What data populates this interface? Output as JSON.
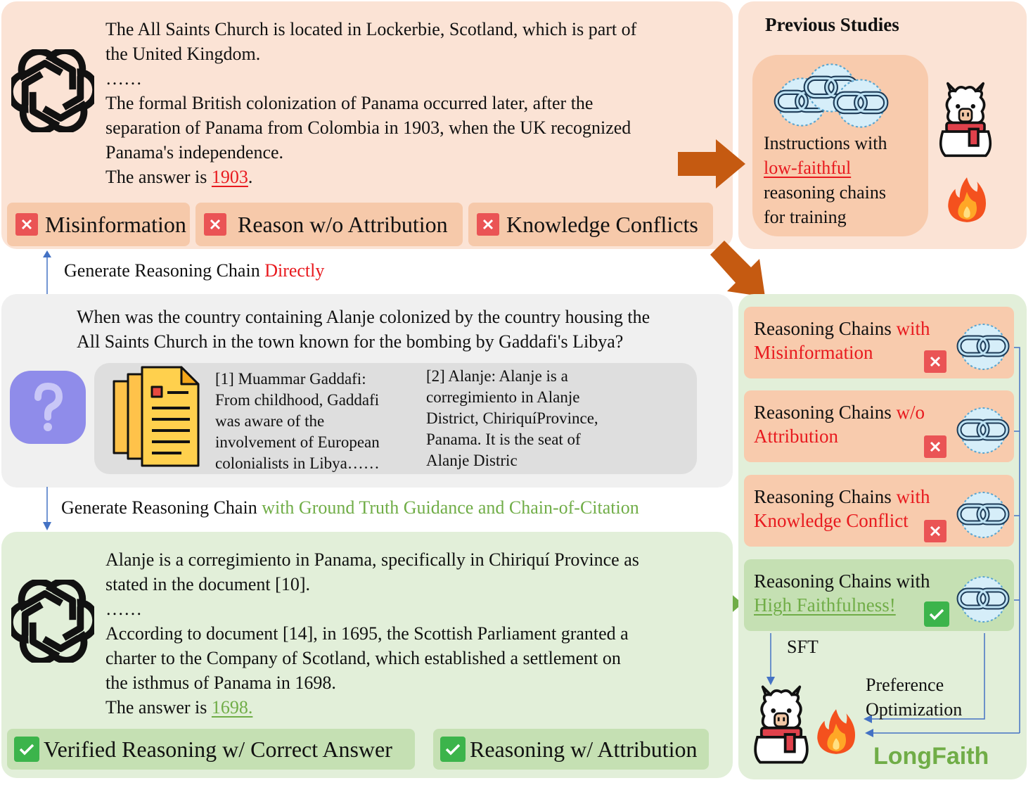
{
  "top": {
    "lines": [
      "The All Saints Church is located in Lockerbie, Scotland, which is part of",
      "the United Kingdom.",
      "……",
      "The formal British colonization of Panama occurred later, after the",
      "separation of Panama from Colombia in 1903, when the UK recognized",
      "Panama's independence."
    ],
    "answer_prefix": "The answer is ",
    "answer": "1903",
    "answer_suffix": ".",
    "tags": [
      "Misinformation",
      "Reason w/o Attribution",
      "Knowledge Conflicts"
    ]
  },
  "previous": {
    "title": "Previous Studies",
    "line1": "Instructions with",
    "line2": "low-faithful",
    "line3": "reasoning chains",
    "line4": "for training"
  },
  "direct": {
    "prefix": "Generate Reasoning Chain ",
    "highlight": "Directly"
  },
  "question": {
    "line1": "When was the country containing Alanje colonized by the country housing the",
    "line2": "All Saints Church in the town known for the bombing by Gaddafi's Libya?",
    "doc1": [
      "[1] Muammar Gaddafi:",
      "From childhood, Gaddafi",
      "was aware of the",
      "involvement of European",
      "colonialists in Libya……"
    ],
    "doc2": [
      "[2] Alanje: Alanje is a",
      "corregimiento in Alanje",
      "District, ChiriquíProvince,",
      "Panama. It is the seat of",
      "Alanje Distric"
    ]
  },
  "guided": {
    "prefix": "Generate Reasoning Chain ",
    "highlight": "with Ground Truth Guidance and Chain-of-Citation"
  },
  "bottom": {
    "lines": [
      "Alanje is a corregimiento in Panama, specifically in Chiriquí Province as",
      "stated in the document [10].",
      "……",
      "According to document [14], in 1695, the Scottish Parliament granted a",
      "charter to the Company of Scotland, which established a settlement on",
      "the isthmus of Panama in 1698."
    ],
    "answer_prefix": "The answer is ",
    "answer": "1698.",
    "tags": [
      "Verified Reasoning w/ Correct Answer",
      "Reasoning w/ Attribution"
    ]
  },
  "longfaith": {
    "cards": [
      {
        "prefix": "Reasoning Chains ",
        "highlight1": "with",
        "highlight2": "Misinformation"
      },
      {
        "prefix": "Reasoning Chains ",
        "highlight1": "w/o",
        "highlight2": "Attribution"
      },
      {
        "prefix": "Reasoning Chains ",
        "highlight1": "with",
        "highlight2": "Knowledge Conflict"
      },
      {
        "prefix": "Reasoning Chains with",
        "highlight1": "",
        "highlight2": "High Faithfulness!"
      }
    ],
    "sft": "SFT",
    "pref1": "Preference",
    "pref2": "Optimization",
    "brand": "LongFaith"
  },
  "colors": {
    "red": "#e8191e",
    "green": "#70ad47",
    "arrow_orange": "#c55a11",
    "arrow_green": "#70ad47",
    "arrow_blue": "#4472c4",
    "question_purple": "#8f8cea"
  }
}
